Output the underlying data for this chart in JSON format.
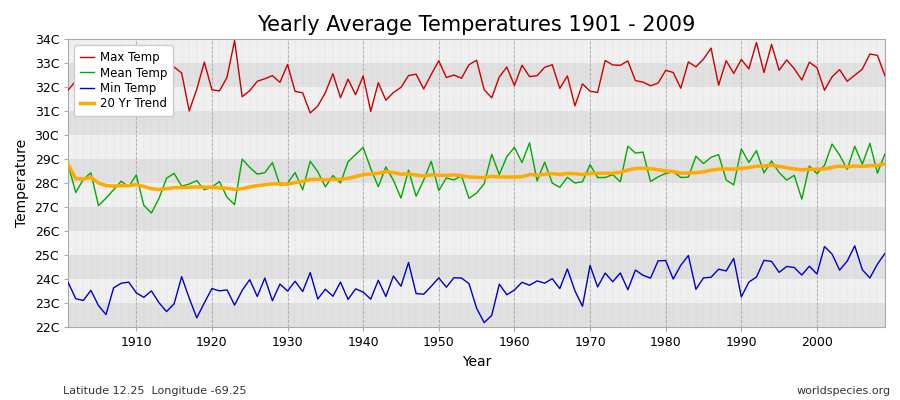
{
  "title": "Yearly Average Temperatures 1901 - 2009",
  "xlabel": "Year",
  "ylabel": "Temperature",
  "fig_bg_color": "#ffffff",
  "plot_bg_color": "#ffffff",
  "band_color_dark": "#e0e0e0",
  "band_color_light": "#f0f0f0",
  "max_color": "#cc0000",
  "mean_color": "#00aa00",
  "min_color": "#0000cc",
  "trend_color": "#ffaa00",
  "ylim": [
    22,
    34
  ],
  "yticks": [
    22,
    23,
    24,
    25,
    26,
    27,
    28,
    29,
    30,
    31,
    32,
    33,
    34
  ],
  "ytick_labels": [
    "22C",
    "23C",
    "24C",
    "25C",
    "26C",
    "27C",
    "28C",
    "29C",
    "30C",
    "31C",
    "32C",
    "33C",
    "34C"
  ],
  "xlim": [
    1901,
    2009
  ],
  "xticks": [
    1910,
    1920,
    1930,
    1940,
    1950,
    1960,
    1970,
    1980,
    1990,
    2000
  ],
  "legend_labels": [
    "Max Temp",
    "Mean Temp",
    "Min Temp",
    "20 Yr Trend"
  ],
  "subtitle_left": "Latitude 12.25  Longitude -69.25",
  "subtitle_right": "worldspecies.org",
  "title_fontsize": 15,
  "label_fontsize": 10,
  "tick_fontsize": 9
}
